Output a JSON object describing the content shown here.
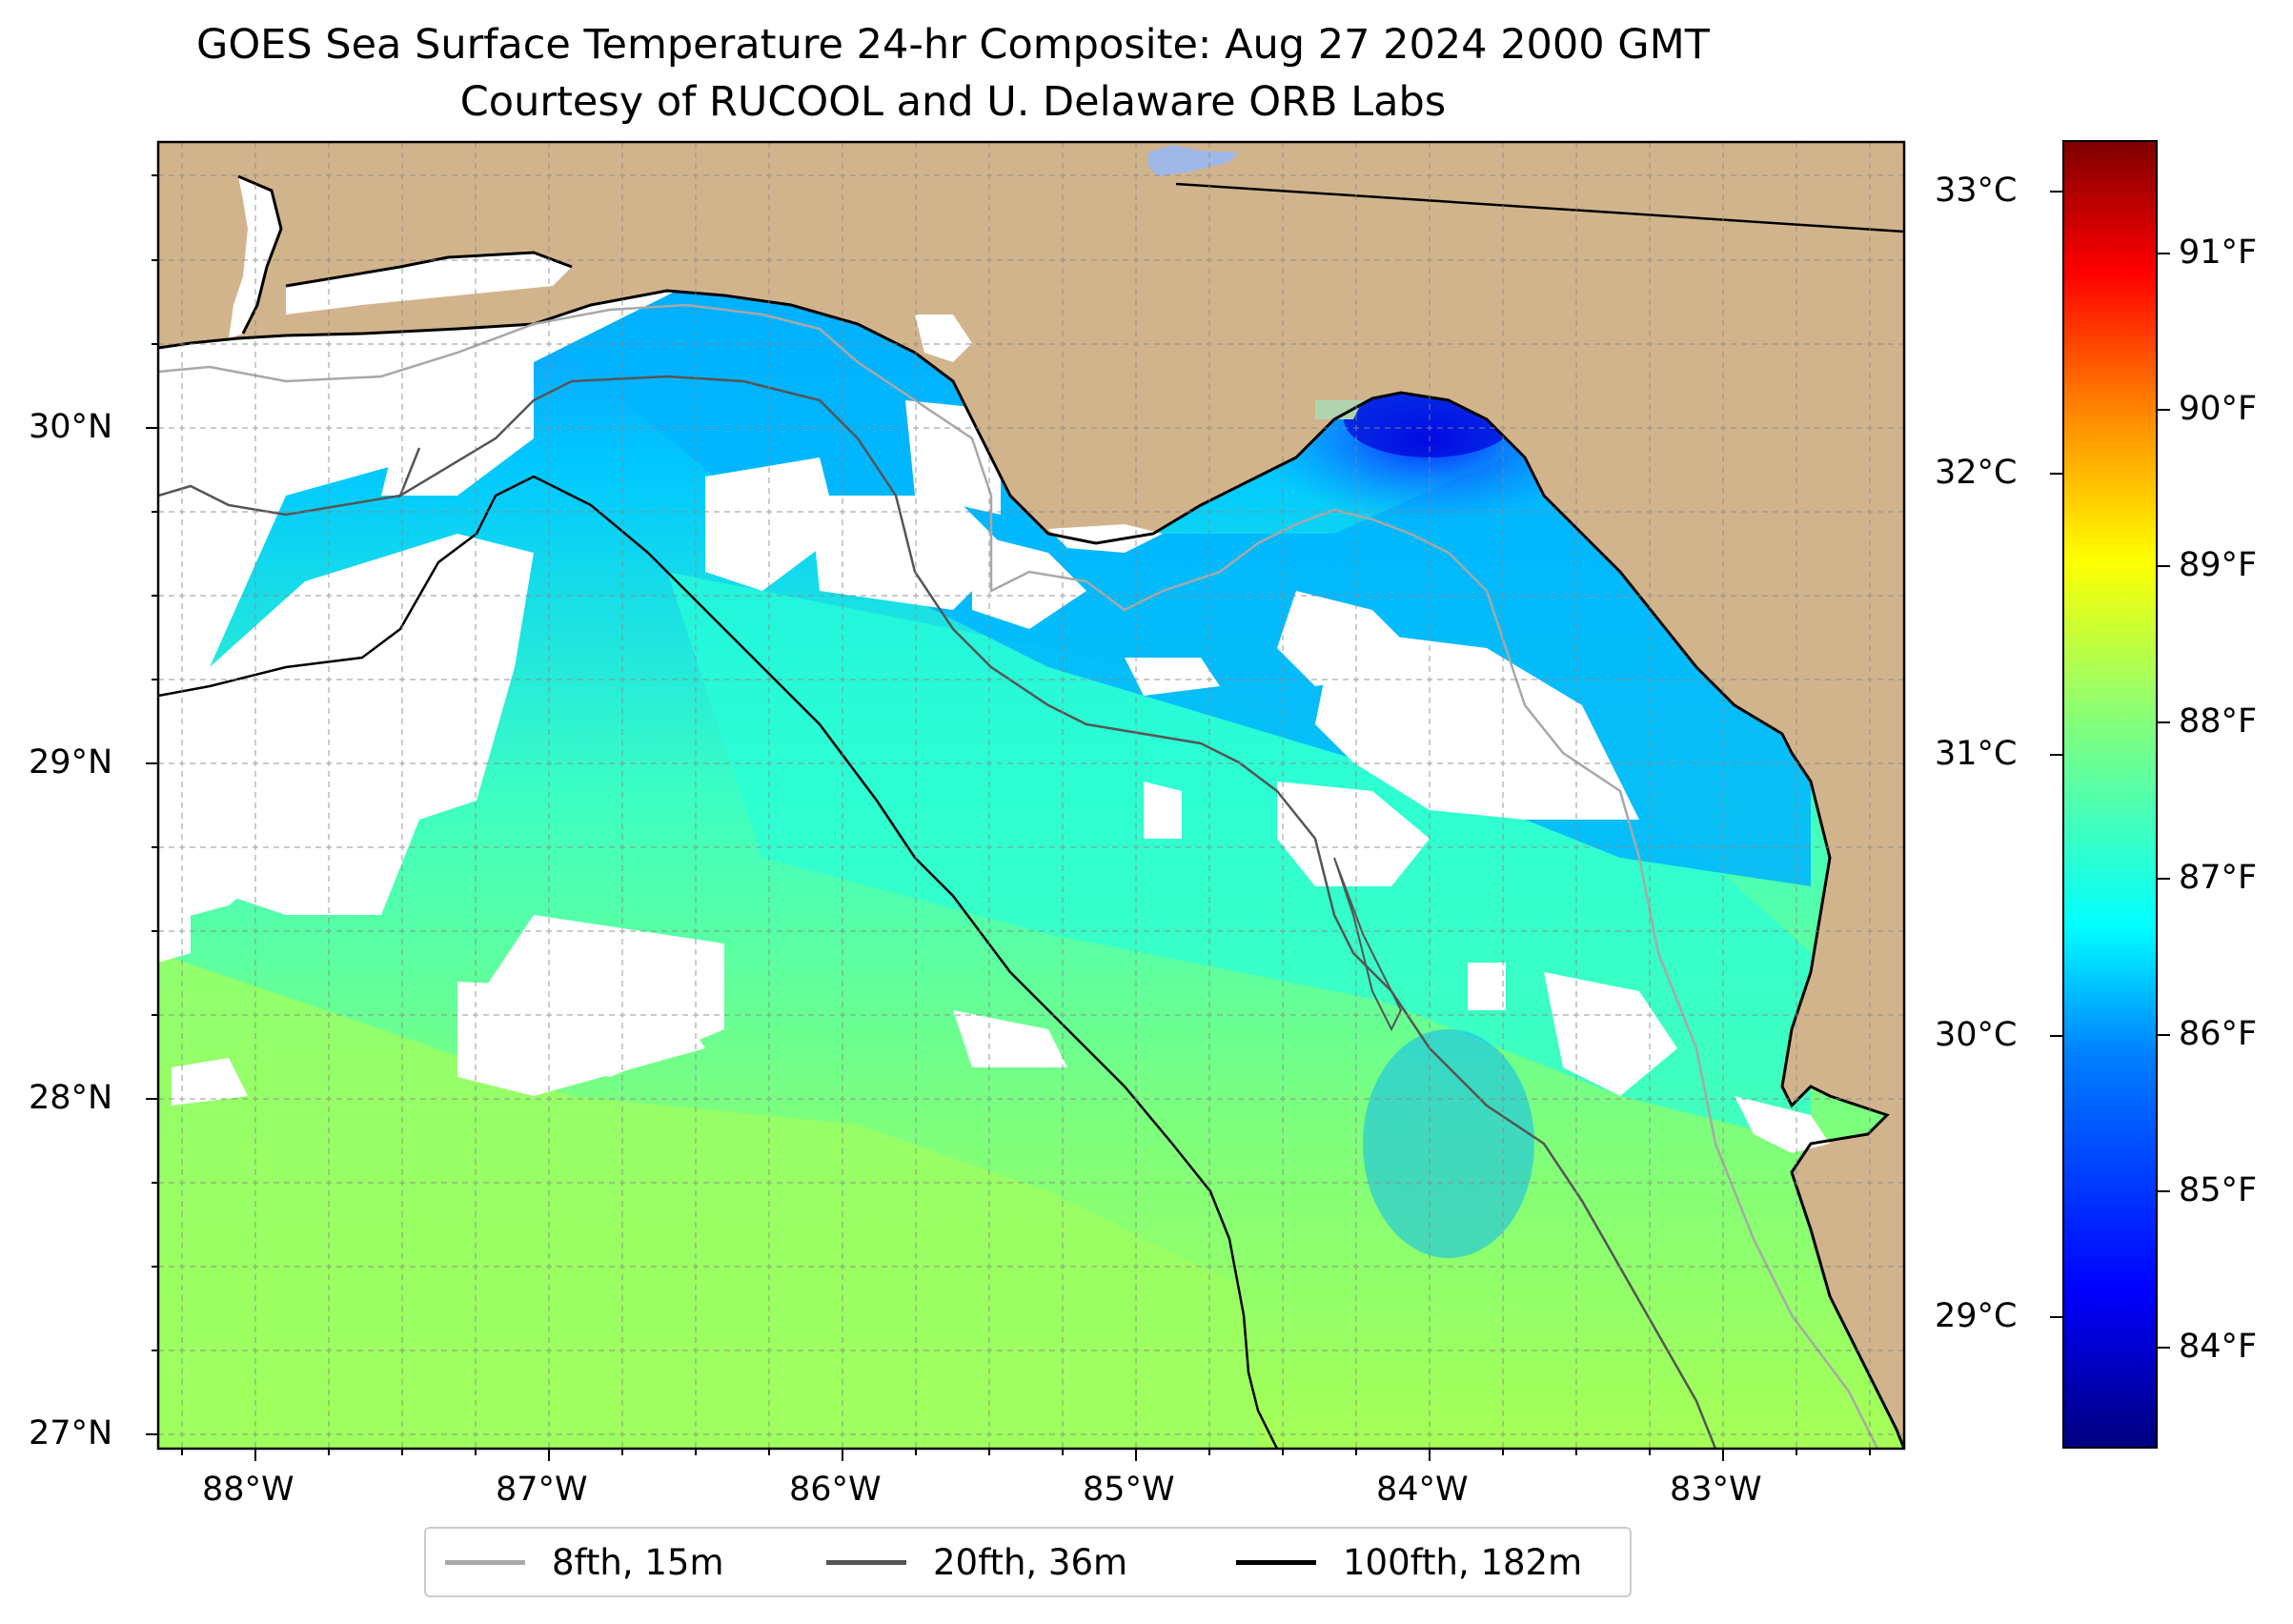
{
  "title": {
    "line1": "GOES Sea Surface Temperature 24-hr Composite: Aug 27 2024 2000 GMT",
    "line2": "Courtesy of RUCOOL and U. Delaware ORB Labs"
  },
  "map": {
    "extent": {
      "lon_min": -88.33,
      "lon_max": -82.4,
      "lat_min": 26.93,
      "lat_max": 30.85
    },
    "land_color": "#d2b48c",
    "ocean_nodata_color": "#ffffff",
    "x_ticks": [
      "88°W",
      "87°W",
      "86°W",
      "85°W",
      "84°W",
      "83°W"
    ],
    "y_ticks": [
      "30°N",
      "29°N",
      "28°N",
      "27°N"
    ],
    "gridlines": true
  },
  "legend": {
    "items": [
      {
        "label": "8fth, 15m",
        "color": "#a8a8a8"
      },
      {
        "label": "20fth, 36m",
        "color": "#555555"
      },
      {
        "label": "100fth, 182m",
        "color": "#000000"
      }
    ]
  },
  "colorbar": {
    "colormap": "jet",
    "celsius_ticks": [
      "33°C",
      "32°C",
      "31°C",
      "30°C",
      "29°C"
    ],
    "fahrenheit_ticks": [
      "91°F",
      "90°F",
      "89°F",
      "88°F",
      "87°F",
      "86°F",
      "85°F",
      "84°F"
    ],
    "range_celsius": [
      28.5,
      33.2
    ]
  }
}
